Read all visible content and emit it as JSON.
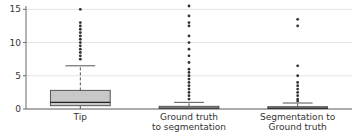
{
  "chart_data": {
    "type": "box",
    "title": "",
    "categories": [
      "Tip",
      "Ground truth\nto segmentation",
      "Segmentation to\nGround truth"
    ],
    "boxes": [
      {
        "q1": 0.5,
        "median": 1.0,
        "q3": 2.8,
        "whisker_low": 0.0,
        "whisker_high": 6.5,
        "outliers": [
          7.5,
          8.0,
          8.5,
          9.0,
          9.5,
          10.0,
          10.5,
          11.0,
          11.5,
          12.0,
          12.5,
          13.0,
          15.0
        ]
      },
      {
        "q1": 0.05,
        "median": 0.15,
        "q3": 0.4,
        "whisker_low": 0.0,
        "whisker_high": 1.0,
        "outliers": [
          1.5,
          2.0,
          2.5,
          3.0,
          3.5,
          4.0,
          4.5,
          5.0,
          5.5,
          6.0,
          7.0,
          8.0,
          9.0,
          10.0,
          11.0,
          12.5,
          13.0,
          14.0,
          15.5
        ]
      },
      {
        "q1": 0.05,
        "median": 0.12,
        "q3": 0.35,
        "whisker_low": 0.0,
        "whisker_high": 0.9,
        "outliers": [
          1.2,
          1.5,
          2.0,
          2.5,
          3.0,
          3.5,
          4.0,
          5.0,
          6.5,
          12.5,
          13.5
        ]
      }
    ],
    "color": "#c8c8c8",
    "ylim": [
      0,
      15.5
    ],
    "yticks": [
      0,
      5,
      10,
      15
    ],
    "grid": true
  }
}
